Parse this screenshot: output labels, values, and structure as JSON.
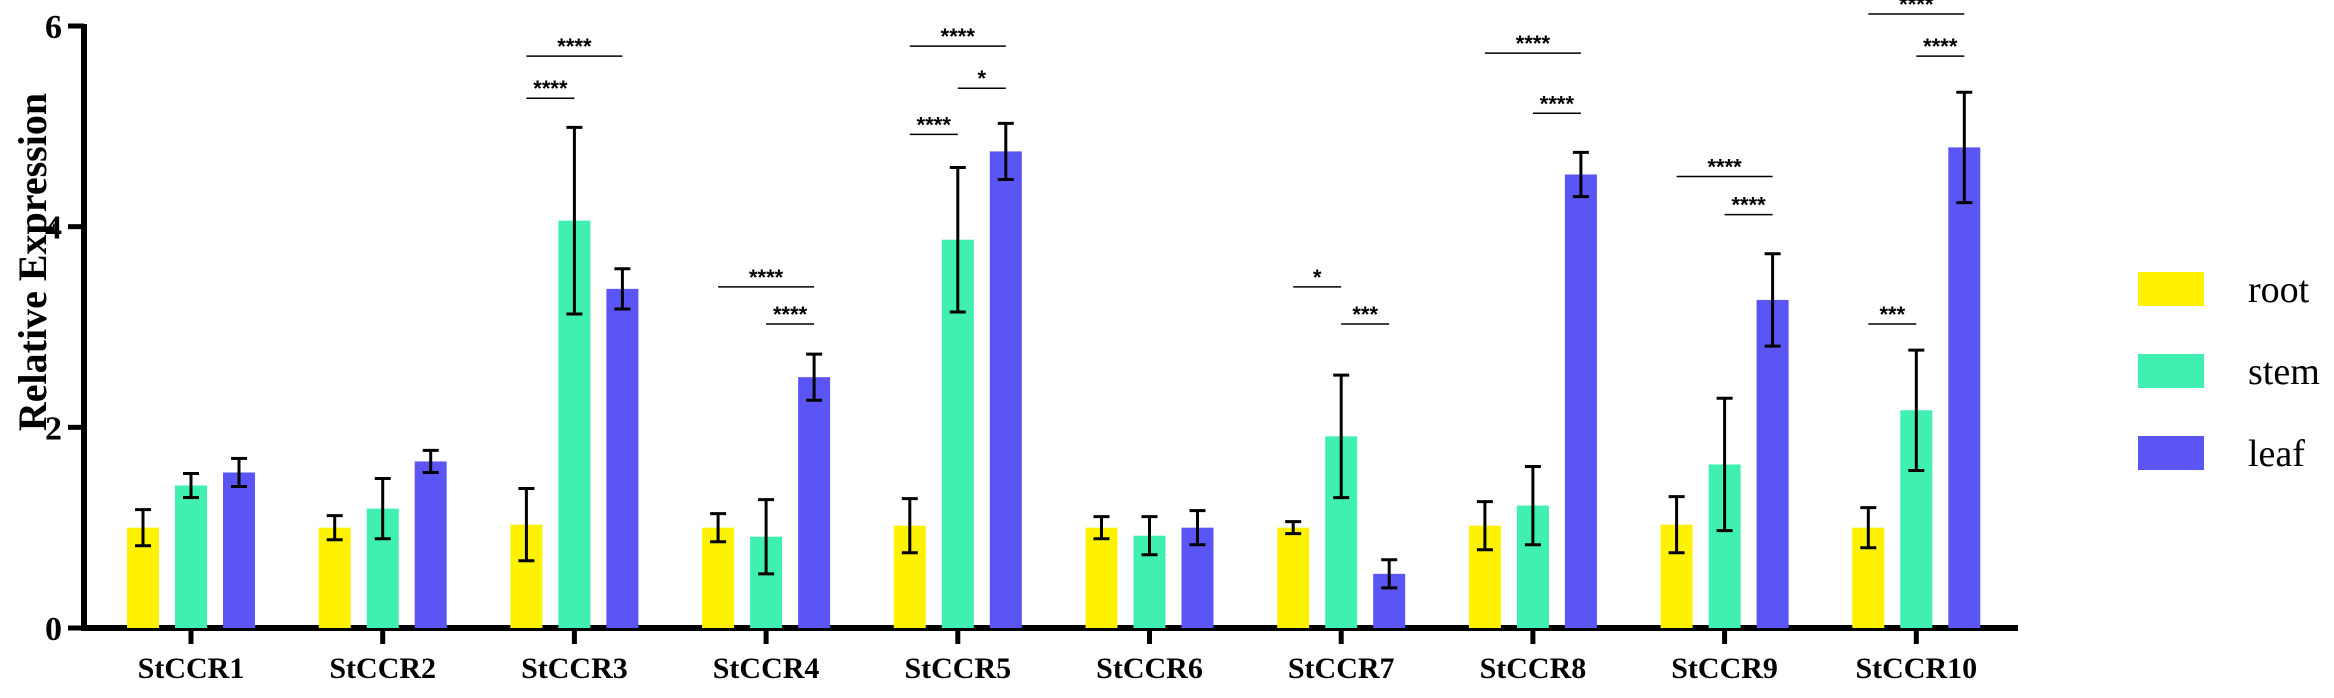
{
  "chart_data": {
    "type": "bar",
    "title": "",
    "xlabel": "",
    "ylabel": "Relative Expression",
    "ylim": [
      0,
      6
    ],
    "yticks": [
      0,
      2,
      4,
      6
    ],
    "categories": [
      "StCCR1",
      "StCCR2",
      "StCCR3",
      "StCCR4",
      "StCCR5",
      "StCCR6",
      "StCCR7",
      "StCCR8",
      "StCCR9",
      "StCCR10"
    ],
    "series": [
      {
        "name": "root",
        "color": "#FFF200",
        "values": [
          1.0,
          1.0,
          1.03,
          1.0,
          1.02,
          1.0,
          1.0,
          1.02,
          1.03,
          1.0
        ],
        "errors": [
          0.18,
          0.12,
          0.36,
          0.14,
          0.27,
          0.11,
          0.06,
          0.24,
          0.28,
          0.2
        ]
      },
      {
        "name": "stem",
        "color": "#40F0B0",
        "values": [
          1.42,
          1.19,
          4.06,
          0.91,
          3.87,
          0.92,
          1.91,
          1.22,
          1.63,
          2.17
        ],
        "errors": [
          0.12,
          0.3,
          0.93,
          0.37,
          0.72,
          0.19,
          0.61,
          0.39,
          0.66,
          0.6
        ]
      },
      {
        "name": "leaf",
        "color": "#5B55F5",
        "values": [
          1.55,
          1.66,
          3.38,
          2.5,
          4.75,
          1.0,
          0.54,
          4.52,
          3.27,
          4.79
        ],
        "errors": [
          0.14,
          0.11,
          0.2,
          0.23,
          0.28,
          0.17,
          0.14,
          0.22,
          0.46,
          0.55
        ]
      }
    ],
    "significance": [
      {
        "category": "StCCR3",
        "from": "root",
        "to": "leaf",
        "label": "****",
        "y": 5.7
      },
      {
        "category": "StCCR3",
        "from": "root",
        "to": "stem",
        "label": "****",
        "y": 5.28
      },
      {
        "category": "StCCR4",
        "from": "root",
        "to": "leaf",
        "label": "****",
        "y": 3.4
      },
      {
        "category": "StCCR4",
        "from": "stem",
        "to": "leaf",
        "label": "****",
        "y": 3.03
      },
      {
        "category": "StCCR5",
        "from": "root",
        "to": "leaf",
        "label": "****",
        "y": 5.8
      },
      {
        "category": "StCCR5",
        "from": "stem",
        "to": "leaf",
        "label": "*",
        "y": 5.38
      },
      {
        "category": "StCCR5",
        "from": "root",
        "to": "stem",
        "label": "****",
        "y": 4.92
      },
      {
        "category": "StCCR7",
        "from": "root",
        "to": "stem",
        "label": "*",
        "y": 3.4
      },
      {
        "category": "StCCR7",
        "from": "stem",
        "to": "leaf",
        "label": "***",
        "y": 3.03
      },
      {
        "category": "StCCR8",
        "from": "root",
        "to": "leaf",
        "label": "****",
        "y": 5.73
      },
      {
        "category": "StCCR8",
        "from": "stem",
        "to": "leaf",
        "label": "****",
        "y": 5.13
      },
      {
        "category": "StCCR9",
        "from": "root",
        "to": "leaf",
        "label": "****",
        "y": 4.5
      },
      {
        "category": "StCCR9",
        "from": "stem",
        "to": "leaf",
        "label": "****",
        "y": 4.12
      },
      {
        "category": "StCCR10",
        "from": "root",
        "to": "leaf",
        "label": "****",
        "y": 6.12
      },
      {
        "category": "StCCR10",
        "from": "stem",
        "to": "leaf",
        "label": "****",
        "y": 5.7
      },
      {
        "category": "StCCR10",
        "from": "root",
        "to": "stem",
        "label": "***",
        "y": 3.03
      }
    ],
    "legend_position": "right"
  }
}
